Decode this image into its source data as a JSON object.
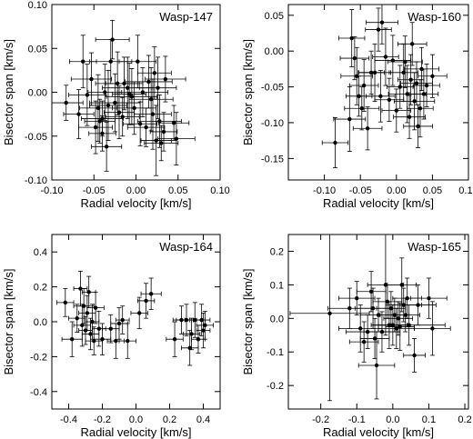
{
  "chart_data": [
    {
      "type": "scatter",
      "title": "Wasp-147",
      "xlabel": "Radial velocity [km/s]",
      "ylabel": "Bisector span [km/s]",
      "xlim": [
        -0.1,
        0.1
      ],
      "ylim": [
        -0.1,
        0.1
      ],
      "xticks": [
        "-0.10",
        "-0.05",
        "0.00",
        "0.05",
        "0.10"
      ],
      "yticks": [
        "-0.10",
        "-0.05",
        "0.00",
        "0.05",
        "0.10"
      ],
      "points": [
        {
          "x": -0.083,
          "y": -0.012,
          "xerr": 0.02,
          "yerr": 0.02
        },
        {
          "x": -0.068,
          "y": -0.025,
          "xerr": 0.018,
          "yerr": 0.028
        },
        {
          "x": -0.063,
          "y": 0.035,
          "xerr": 0.016,
          "yerr": 0.03
        },
        {
          "x": -0.058,
          "y": -0.003,
          "xerr": 0.022,
          "yerr": 0.035
        },
        {
          "x": -0.053,
          "y": 0.015,
          "xerr": 0.024,
          "yerr": 0.03
        },
        {
          "x": -0.048,
          "y": -0.04,
          "xerr": 0.02,
          "yerr": 0.03
        },
        {
          "x": -0.045,
          "y": -0.018,
          "xerr": 0.022,
          "yerr": 0.038
        },
        {
          "x": -0.043,
          "y": -0.033,
          "xerr": 0.018,
          "yerr": 0.025
        },
        {
          "x": -0.04,
          "y": -0.03,
          "xerr": 0.025,
          "yerr": 0.02
        },
        {
          "x": -0.04,
          "y": -0.047,
          "xerr": 0.016,
          "yerr": 0.02
        },
        {
          "x": -0.037,
          "y": 0.0,
          "xerr": 0.02,
          "yerr": 0.032
        },
        {
          "x": -0.035,
          "y": -0.062,
          "xerr": 0.018,
          "yerr": 0.028
        },
        {
          "x": -0.033,
          "y": -0.015,
          "xerr": 0.022,
          "yerr": 0.04
        },
        {
          "x": -0.03,
          "y": 0.035,
          "xerr": 0.025,
          "yerr": 0.025
        },
        {
          "x": -0.028,
          "y": 0.06,
          "xerr": 0.02,
          "yerr": 0.022
        },
        {
          "x": -0.025,
          "y": -0.012,
          "xerr": 0.03,
          "yerr": 0.033
        },
        {
          "x": -0.022,
          "y": 0.01,
          "xerr": 0.026,
          "yerr": 0.036
        },
        {
          "x": -0.02,
          "y": -0.023,
          "xerr": 0.018,
          "yerr": 0.03
        },
        {
          "x": -0.016,
          "y": -0.028,
          "xerr": 0.02,
          "yerr": 0.022
        },
        {
          "x": -0.014,
          "y": 0.01,
          "xerr": 0.022,
          "yerr": 0.03
        },
        {
          "x": -0.01,
          "y": 0.005,
          "xerr": 0.03,
          "yerr": 0.035
        },
        {
          "x": -0.008,
          "y": -0.002,
          "xerr": 0.02,
          "yerr": 0.035
        },
        {
          "x": -0.005,
          "y": -0.005,
          "xerr": 0.03,
          "yerr": 0.032
        },
        {
          "x": -0.002,
          "y": -0.018,
          "xerr": 0.026,
          "yerr": 0.03
        },
        {
          "x": 0.002,
          "y": 0.035,
          "xerr": 0.022,
          "yerr": 0.03
        },
        {
          "x": 0.005,
          "y": -0.036,
          "xerr": 0.02,
          "yerr": 0.025
        },
        {
          "x": 0.008,
          "y": 0.0,
          "xerr": 0.03,
          "yerr": 0.028
        },
        {
          "x": 0.012,
          "y": -0.04,
          "xerr": 0.022,
          "yerr": 0.022
        },
        {
          "x": 0.015,
          "y": 0.012,
          "xerr": 0.028,
          "yerr": 0.03
        },
        {
          "x": 0.018,
          "y": -0.008,
          "xerr": 0.026,
          "yerr": 0.036
        },
        {
          "x": 0.02,
          "y": -0.025,
          "xerr": 0.022,
          "yerr": 0.04
        },
        {
          "x": 0.022,
          "y": 0.022,
          "xerr": 0.02,
          "yerr": 0.03
        },
        {
          "x": 0.024,
          "y": -0.055,
          "xerr": 0.018,
          "yerr": 0.04
        },
        {
          "x": 0.026,
          "y": 0.005,
          "xerr": 0.022,
          "yerr": 0.035
        },
        {
          "x": 0.028,
          "y": -0.033,
          "xerr": 0.026,
          "yerr": 0.03
        },
        {
          "x": 0.03,
          "y": -0.058,
          "xerr": 0.02,
          "yerr": 0.02
        },
        {
          "x": 0.033,
          "y": -0.045,
          "xerr": 0.016,
          "yerr": 0.022
        },
        {
          "x": 0.035,
          "y": 0.015,
          "xerr": 0.024,
          "yerr": 0.026
        },
        {
          "x": 0.045,
          "y": -0.035,
          "xerr": 0.018,
          "yerr": 0.02
        },
        {
          "x": 0.048,
          "y": -0.053,
          "xerr": 0.022,
          "yerr": 0.03
        }
      ]
    },
    {
      "type": "scatter",
      "title": "Wasp-160",
      "xlabel": "Radial velocity [km/s]",
      "ylabel": "Bisector span [km/s]",
      "xlim": [
        -0.15,
        0.1
      ],
      "ylim": [
        -0.18,
        0.065
      ],
      "xticks": [
        "-0.10",
        "-0.05",
        "0.00",
        "0.05",
        "0.10"
      ],
      "yticks": [
        "-0.15",
        "-0.10",
        "-0.05",
        "0.00",
        "0.05"
      ],
      "points": [
        {
          "x": -0.085,
          "y": -0.128,
          "xerr": 0.018,
          "yerr": 0.035
        },
        {
          "x": -0.065,
          "y": -0.095,
          "xerr": 0.022,
          "yerr": 0.045
        },
        {
          "x": -0.062,
          "y": 0.018,
          "xerr": 0.018,
          "yerr": 0.04
        },
        {
          "x": -0.058,
          "y": -0.01,
          "xerr": 0.02,
          "yerr": 0.03
        },
        {
          "x": -0.055,
          "y": -0.035,
          "xerr": 0.022,
          "yerr": 0.04
        },
        {
          "x": -0.052,
          "y": -0.063,
          "xerr": 0.018,
          "yerr": 0.028
        },
        {
          "x": -0.048,
          "y": -0.08,
          "xerr": 0.024,
          "yerr": 0.03
        },
        {
          "x": -0.045,
          "y": -0.048,
          "xerr": 0.02,
          "yerr": 0.036
        },
        {
          "x": -0.04,
          "y": -0.108,
          "xerr": 0.02,
          "yerr": 0.03
        },
        {
          "x": -0.035,
          "y": -0.03,
          "xerr": 0.018,
          "yerr": 0.03
        },
        {
          "x": -0.03,
          "y": -0.03,
          "xerr": 0.022,
          "yerr": 0.04
        },
        {
          "x": -0.025,
          "y": 0.03,
          "xerr": 0.018,
          "yerr": 0.03
        },
        {
          "x": -0.022,
          "y": -0.063,
          "xerr": 0.02,
          "yerr": 0.036
        },
        {
          "x": -0.02,
          "y": 0.04,
          "xerr": 0.022,
          "yerr": 0.03
        },
        {
          "x": -0.015,
          "y": -0.008,
          "xerr": 0.018,
          "yerr": 0.04
        },
        {
          "x": -0.01,
          "y": -0.068,
          "xerr": 0.02,
          "yerr": 0.03
        },
        {
          "x": -0.005,
          "y": -0.013,
          "xerr": 0.025,
          "yerr": 0.035
        },
        {
          "x": 0.0,
          "y": -0.083,
          "xerr": 0.02,
          "yerr": 0.03
        },
        {
          "x": 0.005,
          "y": -0.05,
          "xerr": 0.018,
          "yerr": 0.03
        },
        {
          "x": 0.01,
          "y": -0.03,
          "xerr": 0.02,
          "yerr": 0.04
        },
        {
          "x": 0.012,
          "y": -0.015,
          "xerr": 0.024,
          "yerr": 0.036
        },
        {
          "x": 0.015,
          "y": -0.06,
          "xerr": 0.026,
          "yerr": 0.04
        },
        {
          "x": 0.018,
          "y": -0.092,
          "xerr": 0.022,
          "yerr": 0.03
        },
        {
          "x": 0.02,
          "y": -0.04,
          "xerr": 0.018,
          "yerr": 0.035
        },
        {
          "x": 0.022,
          "y": 0.01,
          "xerr": 0.02,
          "yerr": 0.03
        },
        {
          "x": 0.025,
          "y": -0.07,
          "xerr": 0.028,
          "yerr": 0.04
        },
        {
          "x": 0.028,
          "y": -0.045,
          "xerr": 0.022,
          "yerr": 0.03
        },
        {
          "x": 0.03,
          "y": -0.105,
          "xerr": 0.02,
          "yerr": 0.03
        },
        {
          "x": 0.033,
          "y": -0.08,
          "xerr": 0.018,
          "yerr": 0.04
        },
        {
          "x": 0.035,
          "y": -0.025,
          "xerr": 0.024,
          "yerr": 0.03
        },
        {
          "x": 0.038,
          "y": -0.06,
          "xerr": 0.02,
          "yerr": 0.035
        },
        {
          "x": 0.042,
          "y": -0.048,
          "xerr": 0.018,
          "yerr": 0.03
        },
        {
          "x": 0.05,
          "y": -0.035,
          "xerr": 0.02,
          "yerr": 0.03
        }
      ]
    },
    {
      "type": "scatter",
      "title": "Wasp-164",
      "xlabel": "Radial velocity [km/s]",
      "ylabel": "Bisector span [km/s]",
      "xlim": [
        -0.5,
        0.5
      ],
      "ylim": [
        -0.5,
        0.5
      ],
      "xticks": [
        "-0.4",
        "-0.2",
        "0.0",
        "0.2",
        "0.4"
      ],
      "yticks": [
        "-0.4",
        "-0.2",
        "0.0",
        "0.2",
        "0.4"
      ],
      "points": [
        {
          "x": -0.42,
          "y": 0.11,
          "xerr": 0.05,
          "yerr": 0.08
        },
        {
          "x": -0.38,
          "y": -0.1,
          "xerr": 0.06,
          "yerr": 0.1
        },
        {
          "x": -0.35,
          "y": 0.02,
          "xerr": 0.05,
          "yerr": 0.08
        },
        {
          "x": -0.33,
          "y": 0.19,
          "xerr": 0.04,
          "yerr": 0.1
        },
        {
          "x": -0.32,
          "y": -0.02,
          "xerr": 0.05,
          "yerr": 0.12
        },
        {
          "x": -0.31,
          "y": 0.09,
          "xerr": 0.06,
          "yerr": 0.1
        },
        {
          "x": -0.3,
          "y": -0.05,
          "xerr": 0.04,
          "yerr": 0.08
        },
        {
          "x": -0.29,
          "y": 0.05,
          "xerr": 0.05,
          "yerr": 0.1
        },
        {
          "x": -0.28,
          "y": 0.17,
          "xerr": 0.04,
          "yerr": 0.09
        },
        {
          "x": -0.27,
          "y": -0.07,
          "xerr": 0.05,
          "yerr": 0.09
        },
        {
          "x": -0.26,
          "y": 0.0,
          "xerr": 0.04,
          "yerr": 0.1
        },
        {
          "x": -0.25,
          "y": -0.11,
          "xerr": 0.05,
          "yerr": 0.08
        },
        {
          "x": -0.24,
          "y": 0.08,
          "xerr": 0.05,
          "yerr": 0.09
        },
        {
          "x": -0.22,
          "y": -0.04,
          "xerr": 0.04,
          "yerr": 0.1
        },
        {
          "x": -0.2,
          "y": -0.1,
          "xerr": 0.05,
          "yerr": 0.09
        },
        {
          "x": -0.15,
          "y": -0.04,
          "xerr": 0.05,
          "yerr": 0.08
        },
        {
          "x": -0.12,
          "y": -0.11,
          "xerr": 0.05,
          "yerr": 0.1
        },
        {
          "x": -0.1,
          "y": -0.01,
          "xerr": 0.05,
          "yerr": 0.09
        },
        {
          "x": -0.08,
          "y": 0.01,
          "xerr": 0.04,
          "yerr": 0.08
        },
        {
          "x": -0.05,
          "y": -0.11,
          "xerr": 0.05,
          "yerr": 0.1
        },
        {
          "x": 0.02,
          "y": 0.05,
          "xerr": 0.05,
          "yerr": 0.09
        },
        {
          "x": 0.06,
          "y": 0.12,
          "xerr": 0.05,
          "yerr": 0.1
        },
        {
          "x": 0.09,
          "y": 0.16,
          "xerr": 0.06,
          "yerr": 0.09
        },
        {
          "x": 0.23,
          "y": -0.1,
          "xerr": 0.05,
          "yerr": 0.1
        },
        {
          "x": 0.27,
          "y": 0.01,
          "xerr": 0.05,
          "yerr": 0.08
        },
        {
          "x": 0.3,
          "y": 0.01,
          "xerr": 0.06,
          "yerr": 0.09
        },
        {
          "x": 0.32,
          "y": -0.15,
          "xerr": 0.05,
          "yerr": 0.1
        },
        {
          "x": 0.33,
          "y": -0.07,
          "xerr": 0.05,
          "yerr": 0.09
        },
        {
          "x": 0.35,
          "y": 0.01,
          "xerr": 0.06,
          "yerr": 0.1
        },
        {
          "x": 0.37,
          "y": -0.1,
          "xerr": 0.04,
          "yerr": 0.08
        },
        {
          "x": 0.39,
          "y": 0.01,
          "xerr": 0.05,
          "yerr": 0.09
        },
        {
          "x": 0.4,
          "y": -0.05,
          "xerr": 0.04,
          "yerr": 0.1
        },
        {
          "x": 0.41,
          "y": -0.02,
          "xerr": 0.05,
          "yerr": 0.08
        }
      ]
    },
    {
      "type": "scatter",
      "title": "Wasp-165",
      "xlabel": "Radial velocity [km/s]",
      "ylabel": "Bisector span [km/s]",
      "xlim": [
        -0.29,
        0.21
      ],
      "ylim": [
        -0.27,
        0.25
      ],
      "xticks": [
        "-0.2",
        "-0.1",
        "0.0",
        "0.1",
        "0.2"
      ],
      "yticks": [
        "-0.2",
        "-0.1",
        "0.0",
        "0.1",
        "0.2"
      ],
      "points": [
        {
          "x": -0.175,
          "y": 0.015,
          "xerr": 0.11,
          "yerr": 0.26
        },
        {
          "x": -0.12,
          "y": 0.03,
          "xerr": 0.06,
          "yerr": 0.06
        },
        {
          "x": -0.1,
          "y": 0.06,
          "xerr": 0.05,
          "yerr": 0.05
        },
        {
          "x": -0.09,
          "y": -0.03,
          "xerr": 0.06,
          "yerr": 0.07
        },
        {
          "x": -0.08,
          "y": -0.07,
          "xerr": 0.04,
          "yerr": 0.06
        },
        {
          "x": -0.07,
          "y": -0.04,
          "xerr": 0.06,
          "yerr": 0.05
        },
        {
          "x": -0.06,
          "y": 0.08,
          "xerr": 0.04,
          "yerr": 0.06
        },
        {
          "x": -0.055,
          "y": 0.03,
          "xerr": 0.05,
          "yerr": 0.06
        },
        {
          "x": -0.05,
          "y": -0.06,
          "xerr": 0.04,
          "yerr": 0.06
        },
        {
          "x": -0.045,
          "y": -0.14,
          "xerr": 0.05,
          "yerr": 0.1
        },
        {
          "x": -0.04,
          "y": 0.01,
          "xerr": 0.05,
          "yerr": 0.05
        },
        {
          "x": -0.03,
          "y": -0.04,
          "xerr": 0.05,
          "yerr": 0.06
        },
        {
          "x": -0.02,
          "y": 0.1,
          "xerr": 0.05,
          "yerr": 0.15
        },
        {
          "x": -0.015,
          "y": 0.05,
          "xerr": 0.04,
          "yerr": 0.05
        },
        {
          "x": -0.01,
          "y": -0.02,
          "xerr": 0.05,
          "yerr": 0.07
        },
        {
          "x": -0.005,
          "y": 0.03,
          "xerr": 0.04,
          "yerr": 0.05
        },
        {
          "x": 0.0,
          "y": -0.02,
          "xerr": 0.04,
          "yerr": 0.06
        },
        {
          "x": 0.005,
          "y": 0.01,
          "xerr": 0.04,
          "yerr": 0.05
        },
        {
          "x": 0.01,
          "y": -0.03,
          "xerr": 0.05,
          "yerr": 0.06
        },
        {
          "x": 0.015,
          "y": 0.0,
          "xerr": 0.04,
          "yerr": 0.05
        },
        {
          "x": 0.02,
          "y": -0.025,
          "xerr": 0.04,
          "yerr": 0.07
        },
        {
          "x": 0.025,
          "y": 0.1,
          "xerr": 0.04,
          "yerr": 0.08
        },
        {
          "x": 0.03,
          "y": 0.04,
          "xerr": 0.05,
          "yerr": 0.05
        },
        {
          "x": 0.035,
          "y": 0.01,
          "xerr": 0.04,
          "yerr": 0.05
        },
        {
          "x": 0.04,
          "y": 0.06,
          "xerr": 0.04,
          "yerr": 0.06
        },
        {
          "x": 0.045,
          "y": -0.02,
          "xerr": 0.1,
          "yerr": 0.06
        },
        {
          "x": 0.06,
          "y": -0.11,
          "xerr": 0.03,
          "yerr": 0.05
        },
        {
          "x": 0.07,
          "y": 0.04,
          "xerr": 0.05,
          "yerr": 0.06
        },
        {
          "x": 0.1,
          "y": 0.06,
          "xerr": 0.05,
          "yerr": 0.06
        },
        {
          "x": 0.11,
          "y": -0.03,
          "xerr": 0.05,
          "yerr": 0.08
        }
      ]
    }
  ]
}
